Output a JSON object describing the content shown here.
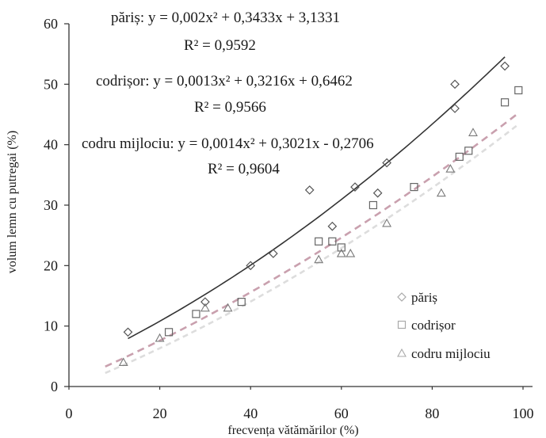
{
  "chart_data": {
    "type": "scatter",
    "xlabel": "frecvența vătămărilor (%)",
    "ylabel": "volum lemn cu putregai (%)",
    "xlim": [
      0,
      100
    ],
    "ylim": [
      0,
      60
    ],
    "x_ticks": [
      "0",
      "20",
      "40",
      "60",
      "80",
      "100"
    ],
    "y_ticks": [
      "0",
      "10",
      "20",
      "30",
      "40",
      "50",
      "60"
    ],
    "grid": false,
    "legend_position": "bottom-right",
    "annotations": [
      {
        "label": "păriș: y = 0,002x² + 0,3433x + 3,1331",
        "r2": "R² = 0,9592"
      },
      {
        "label": "codrișor: y = 0,0013x² + 0,3216x + 0,6462",
        "r2": "R² = 0,9566"
      },
      {
        "label": "codru mijlociu: y = 0,0014x² + 0,3021x - 0,2706",
        "r2": "R² = 0,9604"
      }
    ],
    "series": [
      {
        "name": "păriș",
        "marker": "diamond",
        "color": "#555555",
        "points": [
          {
            "x": 13,
            "y": 9
          },
          {
            "x": 30,
            "y": 14
          },
          {
            "x": 40,
            "y": 20
          },
          {
            "x": 45,
            "y": 22
          },
          {
            "x": 53,
            "y": 32.5
          },
          {
            "x": 58,
            "y": 26.5
          },
          {
            "x": 63,
            "y": 33
          },
          {
            "x": 68,
            "y": 32
          },
          {
            "x": 70,
            "y": 37
          },
          {
            "x": 85,
            "y": 50
          },
          {
            "x": 85,
            "y": 46
          },
          {
            "x": 96,
            "y": 53
          }
        ],
        "trend": {
          "a": 0.002,
          "b": 0.3433,
          "c": 3.1331,
          "x_from": 13,
          "x_to": 96,
          "color": "#333333",
          "dash": "none"
        }
      },
      {
        "name": "codrișor",
        "marker": "square",
        "color": "#666666",
        "points": [
          {
            "x": 22,
            "y": 9
          },
          {
            "x": 28,
            "y": 12
          },
          {
            "x": 38,
            "y": 14
          },
          {
            "x": 55,
            "y": 24
          },
          {
            "x": 58,
            "y": 24
          },
          {
            "x": 60,
            "y": 23
          },
          {
            "x": 67,
            "y": 30
          },
          {
            "x": 76,
            "y": 33
          },
          {
            "x": 86,
            "y": 38
          },
          {
            "x": 88,
            "y": 39
          },
          {
            "x": 96,
            "y": 47
          },
          {
            "x": 99,
            "y": 49
          }
        ],
        "trend": {
          "a": 0.0013,
          "b": 0.3216,
          "c": 0.6462,
          "x_from": 8,
          "x_to": 99,
          "color": "#c9a0ae",
          "dash": "9 6"
        }
      },
      {
        "name": "codru mijlociu",
        "marker": "triangle",
        "color": "#7a7a7a",
        "points": [
          {
            "x": 12,
            "y": 4
          },
          {
            "x": 20,
            "y": 8
          },
          {
            "x": 30,
            "y": 13
          },
          {
            "x": 35,
            "y": 13
          },
          {
            "x": 55,
            "y": 21
          },
          {
            "x": 60,
            "y": 22
          },
          {
            "x": 62,
            "y": 22
          },
          {
            "x": 70,
            "y": 27
          },
          {
            "x": 82,
            "y": 32
          },
          {
            "x": 84,
            "y": 36
          },
          {
            "x": 89,
            "y": 42
          }
        ],
        "trend": {
          "a": 0.0014,
          "b": 0.3021,
          "c": -0.2706,
          "x_from": 8,
          "x_to": 99,
          "color": "#dddddd",
          "dash": "7 5"
        }
      }
    ]
  }
}
